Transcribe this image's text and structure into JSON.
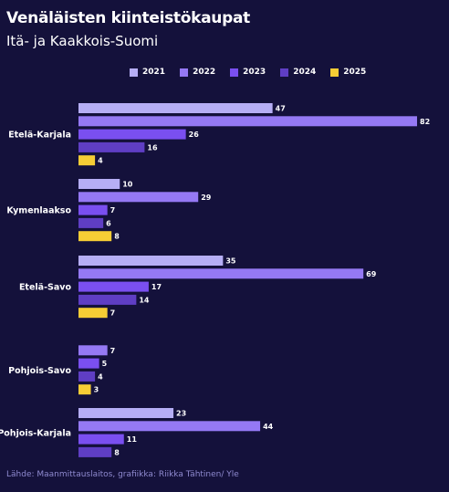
{
  "header": {
    "title": "Venäläisten kiinteistökaupat",
    "subtitle": "Itä- ja Kaakkois-Suomi"
  },
  "source": "Lähde: Maanmittauslaitos, grafiikka: Riikka Tähtinen/ Yle",
  "chart_data": {
    "type": "bar",
    "orientation": "horizontal",
    "title": "Venäläisten kiinteistökaupat",
    "subtitle": "Itä- ja Kaakkois-Suomi",
    "categories": [
      "Etelä-Karjala",
      "Kymenlaakso",
      "Etelä-Savo",
      "Pohjois-Savo",
      "Pohjois-Karjala"
    ],
    "series": [
      {
        "name": "2021",
        "color": "#b6aef5",
        "values": [
          47,
          10,
          35,
          null,
          23
        ]
      },
      {
        "name": "2022",
        "color": "#9579f4",
        "values": [
          82,
          29,
          69,
          7,
          44
        ]
      },
      {
        "name": "2023",
        "color": "#7a4ff0",
        "values": [
          26,
          7,
          17,
          5,
          11
        ]
      },
      {
        "name": "2024",
        "color": "#5f3ec4",
        "values": [
          16,
          6,
          14,
          4,
          8
        ]
      },
      {
        "name": "2025",
        "color": "#f6cd35",
        "values": [
          4,
          8,
          7,
          3,
          null
        ]
      }
    ],
    "xlim": [
      0,
      82
    ],
    "legend_position": "top",
    "grid": false,
    "data_labels": true
  }
}
